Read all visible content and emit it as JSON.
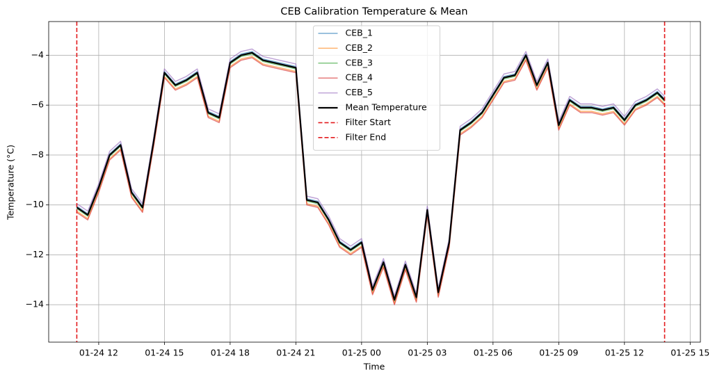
{
  "chart_data": {
    "type": "line",
    "title": "CEB Calibration Temperature & Mean",
    "x_label": "Time",
    "y_label": "Temperature (°C)",
    "grid": true,
    "legend": "upper center",
    "x": [
      "01-24 11:00",
      "01-24 11:30",
      "01-24 12:00",
      "01-24 12:30",
      "01-24 13:00",
      "01-24 13:30",
      "01-24 14:00",
      "01-24 14:30",
      "01-24 15:00",
      "01-24 15:30",
      "01-24 16:00",
      "01-24 16:30",
      "01-24 17:00",
      "01-24 17:30",
      "01-24 18:00",
      "01-24 18:30",
      "01-24 19:00",
      "01-24 19:30",
      "01-24 20:00",
      "01-24 20:30",
      "01-24 21:00",
      "01-24 21:30",
      "01-24 22:00",
      "01-24 22:30",
      "01-24 23:00",
      "01-24 23:30",
      "01-25 00:00",
      "01-25 00:30",
      "01-25 01:00",
      "01-25 01:30",
      "01-25 02:00",
      "01-25 02:30",
      "01-25 03:00",
      "01-25 03:30",
      "01-25 04:00",
      "01-25 04:30",
      "01-25 05:00",
      "01-25 05:30",
      "01-25 06:00",
      "01-25 06:30",
      "01-25 07:00",
      "01-25 07:30",
      "01-25 08:00",
      "01-25 08:30",
      "01-25 09:00",
      "01-25 09:30",
      "01-25 10:00",
      "01-25 10:30",
      "01-25 11:00",
      "01-25 11:30",
      "01-25 12:00",
      "01-25 12:30",
      "01-25 13:00",
      "01-25 13:30",
      "01-25 13:50"
    ],
    "xlim": [
      "01-24 09:43",
      "01-25 15:28"
    ],
    "xticks": [
      "01-24 12",
      "01-24 15",
      "01-24 18",
      "01-24 21",
      "01-25 00",
      "01-25 03",
      "01-25 06",
      "01-25 09",
      "01-25 12",
      "01-25 15"
    ],
    "ylim": [
      -15.5,
      -2.65
    ],
    "yticks": [
      {
        "value": -14,
        "label": "−14"
      },
      {
        "value": -12,
        "label": "−12"
      },
      {
        "value": -10,
        "label": "−10"
      },
      {
        "value": -8,
        "label": "−8"
      },
      {
        "value": -6,
        "label": "−6"
      },
      {
        "value": -4,
        "label": "−4"
      }
    ],
    "series": [
      {
        "name": "CEB_1",
        "color": "#1f77b4",
        "alpha": 0.6,
        "width": 1.5,
        "values": [
          -10.05,
          -10.35,
          -9.25,
          -7.95,
          -7.55,
          -9.45,
          -10.05,
          -7.45,
          -4.65,
          -5.15,
          -4.95,
          -4.65,
          -6.25,
          -6.45,
          -4.25,
          -3.95,
          -3.85,
          -4.15,
          -4.25,
          -4.35,
          -4.45,
          -9.75,
          -9.85,
          -10.55,
          -11.45,
          -11.75,
          -11.45,
          -13.35,
          -12.25,
          -13.75,
          -12.35,
          -13.65,
          -10.15,
          -13.45,
          -11.45,
          -6.95,
          -6.65,
          -6.25,
          -5.55,
          -4.85,
          -4.75,
          -3.95,
          -5.15,
          -4.25,
          -6.75,
          -5.75,
          -6.05,
          -6.05,
          -6.15,
          -6.05,
          -6.55,
          -5.95,
          -5.75,
          -5.45,
          -5.75
        ]
      },
      {
        "name": "CEB_2",
        "color": "#ff7f0e",
        "alpha": 0.6,
        "width": 1.5,
        "values": [
          -10.25,
          -10.55,
          -9.45,
          -8.15,
          -7.75,
          -9.65,
          -10.25,
          -7.65,
          -4.85,
          -5.35,
          -5.15,
          -4.85,
          -6.45,
          -6.65,
          -4.45,
          -4.15,
          -4.05,
          -4.35,
          -4.45,
          -4.55,
          -4.65,
          -9.95,
          -10.05,
          -10.75,
          -11.65,
          -11.95,
          -11.65,
          -13.55,
          -12.45,
          -13.95,
          -12.55,
          -13.85,
          -10.35,
          -13.65,
          -11.65,
          -7.15,
          -6.85,
          -6.45,
          -5.75,
          -5.05,
          -4.95,
          -4.15,
          -5.35,
          -4.45,
          -6.95,
          -5.95,
          -6.25,
          -6.25,
          -6.35,
          -6.25,
          -6.75,
          -6.15,
          -5.95,
          -5.65,
          -5.95
        ]
      },
      {
        "name": "CEB_3",
        "color": "#2ca02c",
        "alpha": 0.6,
        "width": 1.5,
        "values": [
          -10.15,
          -10.45,
          -9.35,
          -8.05,
          -7.65,
          -9.55,
          -10.15,
          -7.55,
          -4.75,
          -5.25,
          -5.05,
          -4.75,
          -6.35,
          -6.55,
          -4.35,
          -4.05,
          -3.95,
          -4.25,
          -4.35,
          -4.45,
          -4.55,
          -9.85,
          -9.95,
          -10.65,
          -11.55,
          -11.85,
          -11.55,
          -13.45,
          -12.35,
          -13.85,
          -12.45,
          -13.75,
          -10.25,
          -13.55,
          -11.55,
          -7.05,
          -6.75,
          -6.35,
          -5.65,
          -4.95,
          -4.85,
          -4.05,
          -5.25,
          -4.35,
          -6.85,
          -5.85,
          -6.15,
          -6.15,
          -6.25,
          -6.15,
          -6.65,
          -6.05,
          -5.85,
          -5.55,
          -5.85
        ]
      },
      {
        "name": "CEB_4",
        "color": "#d62728",
        "alpha": 0.6,
        "width": 1.5,
        "values": [
          -10.3,
          -10.6,
          -9.5,
          -8.2,
          -7.8,
          -9.7,
          -10.3,
          -7.7,
          -4.9,
          -5.4,
          -5.2,
          -4.9,
          -6.5,
          -6.7,
          -4.5,
          -4.2,
          -4.1,
          -4.4,
          -4.5,
          -4.6,
          -4.7,
          -10.0,
          -10.1,
          -10.8,
          -11.7,
          -12.0,
          -11.7,
          -13.6,
          -12.5,
          -14.0,
          -12.6,
          -13.9,
          -10.4,
          -13.7,
          -11.7,
          -7.2,
          -6.9,
          -6.5,
          -5.8,
          -5.1,
          -5.0,
          -4.2,
          -5.4,
          -4.5,
          -7.0,
          -6.0,
          -6.3,
          -6.3,
          -6.4,
          -6.3,
          -6.8,
          -6.2,
          -6.0,
          -5.7,
          -6.0
        ]
      },
      {
        "name": "CEB_5",
        "color": "#9467bd",
        "alpha": 0.6,
        "width": 1.5,
        "values": [
          -9.95,
          -10.25,
          -9.15,
          -7.85,
          -7.45,
          -9.35,
          -9.95,
          -7.35,
          -4.55,
          -5.05,
          -4.85,
          -4.55,
          -6.15,
          -6.35,
          -4.15,
          -3.85,
          -3.75,
          -4.05,
          -4.15,
          -4.25,
          -4.35,
          -9.65,
          -9.75,
          -10.45,
          -11.35,
          -11.65,
          -11.35,
          -13.25,
          -12.15,
          -13.65,
          -12.25,
          -13.55,
          -10.05,
          -13.35,
          -11.35,
          -6.85,
          -6.55,
          -6.15,
          -5.45,
          -4.75,
          -4.65,
          -3.85,
          -5.05,
          -4.15,
          -6.65,
          -5.65,
          -5.95,
          -5.95,
          -6.05,
          -5.95,
          -6.45,
          -5.85,
          -5.65,
          -5.35,
          -5.65
        ]
      },
      {
        "name": "Mean Temperature",
        "color": "#000000",
        "alpha": 1,
        "width": 2.2,
        "values": [
          -10.1,
          -10.4,
          -9.3,
          -8.0,
          -7.6,
          -9.5,
          -10.1,
          -7.5,
          -4.7,
          -5.2,
          -5.0,
          -4.7,
          -6.3,
          -6.5,
          -4.3,
          -4.0,
          -3.9,
          -4.2,
          -4.3,
          -4.4,
          -4.5,
          -9.8,
          -9.9,
          -10.6,
          -11.5,
          -11.8,
          -11.5,
          -13.4,
          -12.3,
          -13.8,
          -12.4,
          -13.7,
          -10.2,
          -13.5,
          -11.5,
          -7.0,
          -6.7,
          -6.3,
          -5.6,
          -4.9,
          -4.8,
          -4.0,
          -5.2,
          -4.3,
          -6.8,
          -5.8,
          -6.1,
          -6.1,
          -6.2,
          -6.1,
          -6.6,
          -6.0,
          -5.8,
          -5.5,
          -5.8
        ]
      }
    ],
    "vlines": [
      {
        "name": "Filter Start",
        "x": "01-24 11:00",
        "color": "#e31a1c",
        "dashed": true
      },
      {
        "name": "Filter End",
        "x": "01-25 13:50",
        "color": "#e31a1c",
        "dashed": true
      }
    ]
  }
}
